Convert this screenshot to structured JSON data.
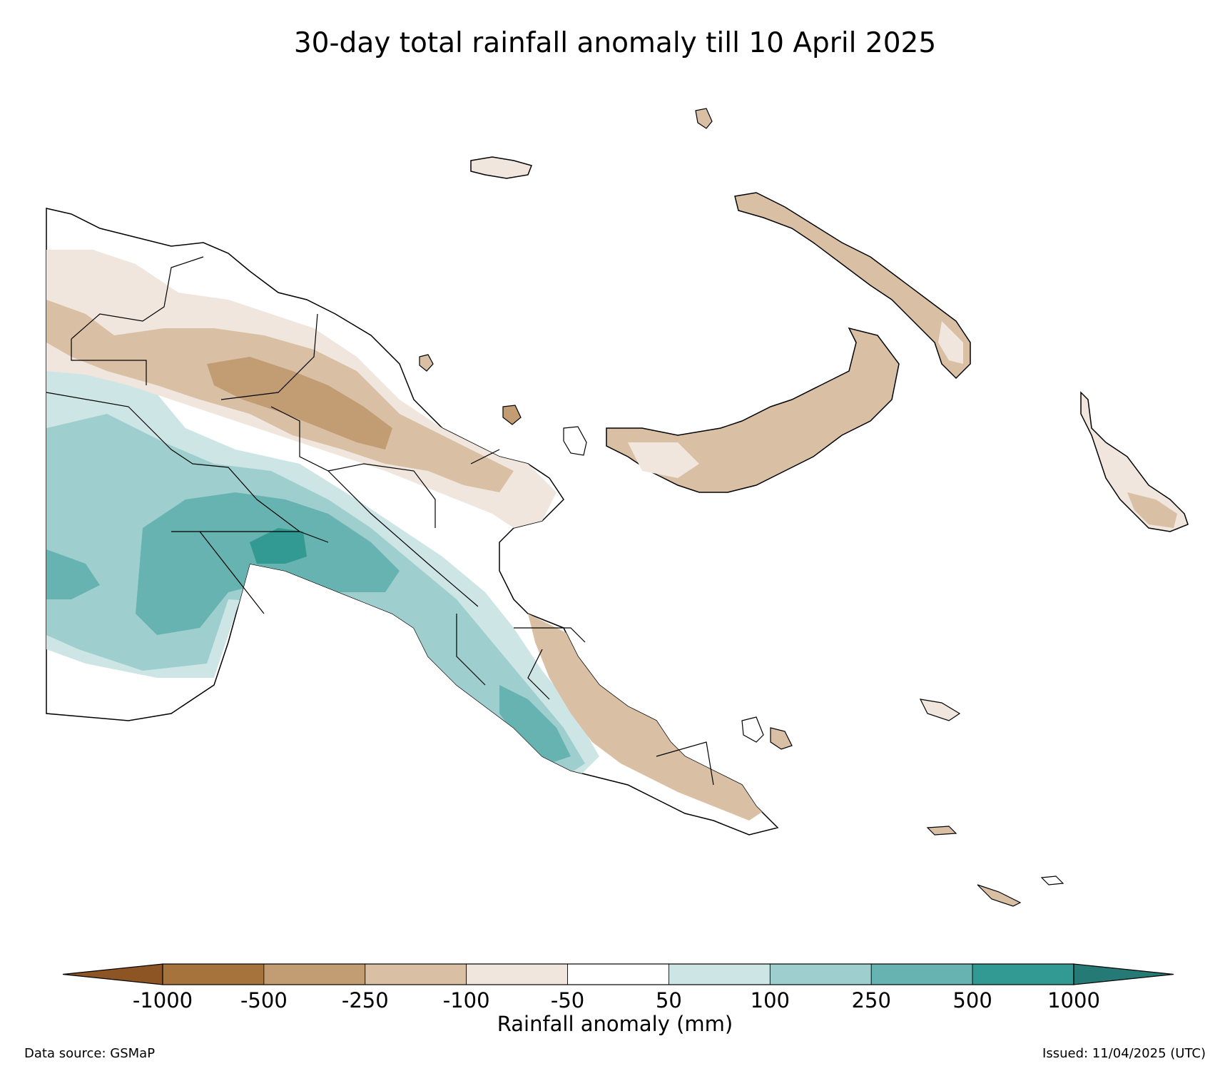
{
  "title": "30-day total rainfall anomaly till 10 April 2025",
  "colorbar": {
    "label": "Rainfall anomaly (mm)",
    "ticks": [
      "-1000",
      "-500",
      "-250",
      "-100",
      "-50",
      "50",
      "100",
      "250",
      "500",
      "1000"
    ],
    "bins": [
      {
        "range": "< -1000",
        "color": "#8c5523"
      },
      {
        "range": "-1000 to -500",
        "color": "#a6733c"
      },
      {
        "range": "-500 to -250",
        "color": "#c29c72"
      },
      {
        "range": "-250 to -100",
        "color": "#d9c0a5"
      },
      {
        "range": "-100 to -50",
        "color": "#f0e6dd"
      },
      {
        "range": "-50 to 50",
        "color": "#ffffff"
      },
      {
        "range": "50 to 100",
        "color": "#cde6e5"
      },
      {
        "range": "100 to 250",
        "color": "#9ecfce"
      },
      {
        "range": "250 to 500",
        "color": "#66b3b1"
      },
      {
        "range": "500 to 1000",
        "color": "#339993"
      },
      {
        "range": "> 1000",
        "color": "#267a75"
      }
    ]
  },
  "data_source": "Data source: GSMaP",
  "issued": "Issued: 11/04/2025 (UTC)"
}
